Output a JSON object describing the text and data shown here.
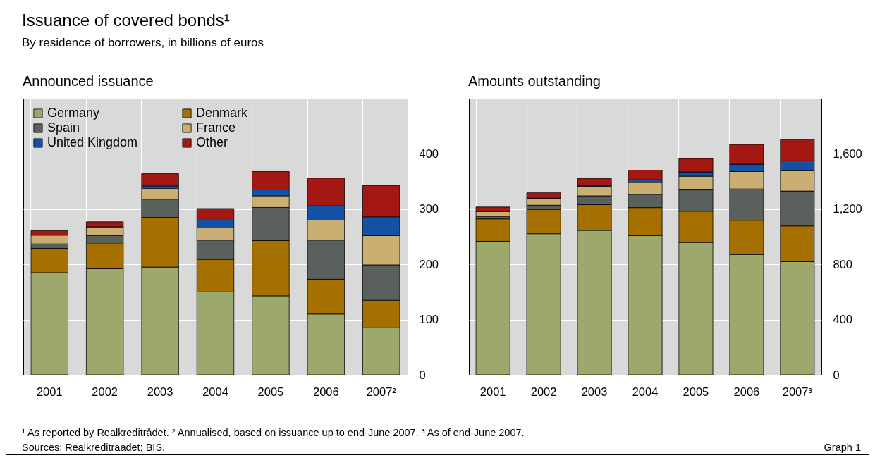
{
  "chart_data": [
    {
      "type": "bar",
      "title": "Announced issuance",
      "stacked": true,
      "grid": true,
      "legend": "top left",
      "categories": [
        "2001",
        "2002",
        "2003",
        "2004",
        "2005",
        "2006",
        "2007²"
      ],
      "ylim": [
        0,
        500
      ],
      "yticks": [
        0,
        100,
        200,
        300,
        400
      ],
      "annotations": [
        "Issuance of covered bonds¹",
        "By residence of borrowers, in billions of euros"
      ],
      "series": [
        {
          "name": "Germany",
          "color": "#9ca86c",
          "values": [
            185,
            192,
            195,
            150,
            143,
            110,
            85
          ]
        },
        {
          "name": "Denmark",
          "color": "#a57000",
          "values": [
            44,
            45,
            90,
            59,
            100,
            63,
            50
          ]
        },
        {
          "name": "Spain",
          "color": "#5a605c",
          "values": [
            8,
            15,
            33,
            35,
            60,
            71,
            64
          ]
        },
        {
          "name": "France",
          "color": "#cbae72",
          "values": [
            16,
            16,
            19,
            22,
            21,
            36,
            53
          ]
        },
        {
          "name": "United Kingdom",
          "color": "#1351a6",
          "values": [
            0,
            0,
            5,
            14,
            12,
            26,
            34
          ]
        },
        {
          "name": "Other",
          "color": "#a31812",
          "values": [
            8,
            9,
            22,
            21,
            32,
            50,
            57
          ]
        }
      ]
    },
    {
      "type": "bar",
      "title": "Amounts outstanding",
      "stacked": true,
      "grid": true,
      "categories": [
        "2001",
        "2002",
        "2003",
        "2004",
        "2005",
        "2006",
        "2007³"
      ],
      "ylim": [
        0,
        2000
      ],
      "yticks": [
        0,
        400,
        800,
        {
          "value": 1200,
          "label": "1,200"
        },
        {
          "value": 1600,
          "label": "1,600"
        }
      ],
      "annotations": [
        "¹ As reported by Realkreditrådet.  ² Annualised, based on issuance up to end-June 2007.  ³ As of end-June 2007.",
        "Sources: Realkreditraadet; BIS.",
        "Graph 1"
      ],
      "series": [
        {
          "color": "#9ca86c",
          "values": [
            967,
            1022,
            1046,
            1008,
            958,
            871,
            819
          ]
        },
        {
          "color": "#a57000",
          "values": [
            162,
            176,
            186,
            203,
            227,
            248,
            259
          ]
        },
        {
          "color": "#5a605c",
          "values": [
            18,
            30,
            64,
            96,
            154,
            227,
            253
          ]
        },
        {
          "color": "#cbae72",
          "values": [
            36,
            51,
            67,
            86,
            99,
            126,
            147
          ]
        },
        {
          "color": "#1351a6",
          "values": [
            0,
            0,
            6,
            19,
            31,
            53,
            71
          ]
        },
        {
          "color": "#a31812",
          "values": [
            32,
            39,
            53,
            70,
            97,
            143,
            156
          ]
        }
      ]
    }
  ]
}
